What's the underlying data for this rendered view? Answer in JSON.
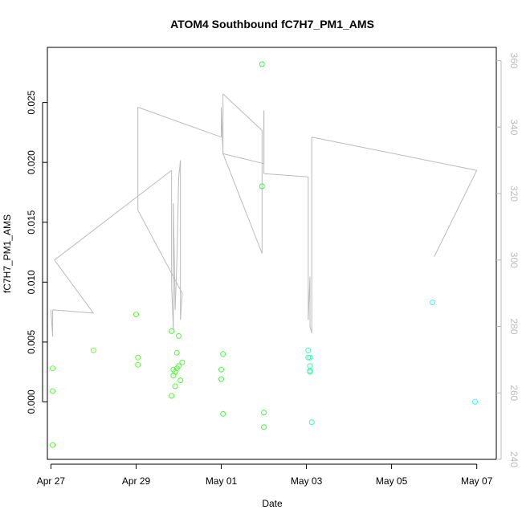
{
  "chart_data": {
    "type": "scatter",
    "title": "ATOM4 Southbound fC7H7_PM1_AMS",
    "xlabel": "Date",
    "ylabel": "fC7H7_PM1_AMS",
    "x_axis": {
      "type": "date",
      "range": [
        "2017-04-26T22:00",
        "2017-05-07T11:00"
      ],
      "ticks": [
        {
          "date": "2017-04-27",
          "label": "Apr 27"
        },
        {
          "date": "2017-04-29",
          "label": "Apr 29"
        },
        {
          "date": "2017-05-01",
          "label": "May 01"
        },
        {
          "date": "2017-05-03",
          "label": "May 03"
        },
        {
          "date": "2017-05-05",
          "label": "May 05"
        },
        {
          "date": "2017-05-07",
          "label": "May 07"
        }
      ]
    },
    "y_left": {
      "range": [
        -0.0048,
        0.0296
      ],
      "ticks": [
        {
          "value": 0.0,
          "label": "0.000"
        },
        {
          "value": 0.005,
          "label": "0.005"
        },
        {
          "value": 0.01,
          "label": "0.010"
        },
        {
          "value": 0.015,
          "label": "0.015"
        },
        {
          "value": 0.02,
          "label": "0.020"
        },
        {
          "value": 0.025,
          "label": "0.025"
        }
      ]
    },
    "y_right": {
      "range": [
        240,
        364
      ],
      "color": "#bbbbbb",
      "ticks": [
        {
          "value": 240,
          "label": "240"
        },
        {
          "value": 260,
          "label": "260"
        },
        {
          "value": 280,
          "label": "280"
        },
        {
          "value": 300,
          "label": "300"
        },
        {
          "value": 320,
          "label": "320"
        },
        {
          "value": 340,
          "label": "340"
        },
        {
          "value": 360,
          "label": "360"
        }
      ]
    },
    "grid": false,
    "series": [
      {
        "kind": "points",
        "axis": "left",
        "marker": "open-circle",
        "points": [
          {
            "x": "2017-04-27T01:00",
            "y": -0.0036,
            "color": "#55ff33"
          },
          {
            "x": "2017-04-27T01:00",
            "y": 0.0009,
            "color": "#55ff33"
          },
          {
            "x": "2017-04-27T01:00",
            "y": 0.0028,
            "color": "#55ff33"
          },
          {
            "x": "2017-04-28T00:00",
            "y": 0.0043,
            "color": "#66ff33"
          },
          {
            "x": "2017-04-29T00:00",
            "y": 0.0073,
            "color": "#5cff33"
          },
          {
            "x": "2017-04-29T01:00",
            "y": 0.0037,
            "color": "#5cff33"
          },
          {
            "x": "2017-04-29T01:00",
            "y": 0.0031,
            "color": "#5cff33"
          },
          {
            "x": "2017-04-29T20:00",
            "y": 0.0059,
            "color": "#4dff33"
          },
          {
            "x": "2017-04-29T20:00",
            "y": 0.0005,
            "color": "#4dff33"
          },
          {
            "x": "2017-04-29T21:00",
            "y": 0.0022,
            "color": "#4dff33"
          },
          {
            "x": "2017-04-29T21:00",
            "y": 0.0027,
            "color": "#4dff33"
          },
          {
            "x": "2017-04-29T22:00",
            "y": 0.0025,
            "color": "#4dff33"
          },
          {
            "x": "2017-04-29T22:00",
            "y": 0.0013,
            "color": "#4dff33"
          },
          {
            "x": "2017-04-29T23:00",
            "y": 0.0028,
            "color": "#4dff33"
          },
          {
            "x": "2017-04-29T23:00",
            "y": 0.0041,
            "color": "#4dff33"
          },
          {
            "x": "2017-04-30T00:00",
            "y": 0.003,
            "color": "#4dff33"
          },
          {
            "x": "2017-04-30T00:00",
            "y": 0.0055,
            "color": "#4dff33"
          },
          {
            "x": "2017-04-30T01:00",
            "y": 0.0018,
            "color": "#4dff33"
          },
          {
            "x": "2017-04-30T02:00",
            "y": 0.0033,
            "color": "#4dff33"
          },
          {
            "x": "2017-05-01T00:00",
            "y": 0.0027,
            "color": "#40ff40"
          },
          {
            "x": "2017-05-01T00:00",
            "y": 0.0019,
            "color": "#40ff40"
          },
          {
            "x": "2017-05-01T01:00",
            "y": -0.001,
            "color": "#40ff40"
          },
          {
            "x": "2017-05-01T01:00",
            "y": 0.004,
            "color": "#40ff40"
          },
          {
            "x": "2017-05-01T23:00",
            "y": 0.0282,
            "color": "#33ff44"
          },
          {
            "x": "2017-05-01T23:00",
            "y": 0.018,
            "color": "#33ff44"
          },
          {
            "x": "2017-05-02T00:00",
            "y": -0.0009,
            "color": "#33ff44"
          },
          {
            "x": "2017-05-02T00:00",
            "y": -0.0021,
            "color": "#33ff44"
          },
          {
            "x": "2017-05-03T01:00",
            "y": 0.0043,
            "color": "#33ffaa"
          },
          {
            "x": "2017-05-03T01:00",
            "y": 0.0037,
            "color": "#33ffaa"
          },
          {
            "x": "2017-05-03T02:00",
            "y": 0.0037,
            "color": "#33ffaa"
          },
          {
            "x": "2017-05-03T02:00",
            "y": 0.003,
            "color": "#33ffaa"
          },
          {
            "x": "2017-05-03T02:00",
            "y": 0.0026,
            "color": "#33ffaa"
          },
          {
            "x": "2017-05-03T02:00",
            "y": 0.0025,
            "color": "#33ffaa"
          },
          {
            "x": "2017-05-03T03:00",
            "y": -0.0017,
            "color": "#33ffaa"
          },
          {
            "x": "2017-05-05T23:00",
            "y": 0.0083,
            "color": "#33ffee"
          },
          {
            "x": "2017-05-06T23:00",
            "y": 0.0,
            "color": "#33ffff"
          }
        ]
      },
      {
        "kind": "line",
        "axis": "right",
        "color": "#bbbbbb",
        "points": [
          {
            "x": "2017-04-27T00:00",
            "y": 285
          },
          {
            "x": "2017-04-27T01:00",
            "y": 277
          },
          {
            "x": "2017-04-27T01:00",
            "y": 285
          },
          {
            "x": "2017-04-28T00:00",
            "y": 284
          },
          {
            "x": "2017-04-27T02:00",
            "y": 300
          },
          {
            "x": "2017-04-29T20:00",
            "y": 327
          },
          {
            "x": "2017-04-29T20:00",
            "y": 292
          },
          {
            "x": "2017-04-29T21:00",
            "y": 279
          },
          {
            "x": "2017-04-29T21:00",
            "y": 317
          },
          {
            "x": "2017-04-29T22:00",
            "y": 285
          },
          {
            "x": "2017-04-29T23:00",
            "y": 300
          },
          {
            "x": "2017-04-30T00:00",
            "y": 325
          },
          {
            "x": "2017-04-30T01:00",
            "y": 330
          },
          {
            "x": "2017-04-30T01:00",
            "y": 282
          },
          {
            "x": "2017-04-30T02:00",
            "y": 290
          },
          {
            "x": "2017-04-29T01:00",
            "y": 315
          },
          {
            "x": "2017-04-29T01:00",
            "y": 346
          },
          {
            "x": "2017-05-01T00:00",
            "y": 337
          },
          {
            "x": "2017-05-01T00:00",
            "y": 346
          },
          {
            "x": "2017-05-01T01:00",
            "y": 332
          },
          {
            "x": "2017-05-01T01:00",
            "y": 350
          },
          {
            "x": "2017-05-01T23:00",
            "y": 339
          },
          {
            "x": "2017-05-01T23:00",
            "y": 302
          },
          {
            "x": "2017-05-01T01:00",
            "y": 332
          },
          {
            "x": "2017-05-02T00:00",
            "y": 329
          },
          {
            "x": "2017-05-02T00:00",
            "y": 345
          },
          {
            "x": "2017-05-02T00:00",
            "y": 326
          },
          {
            "x": "2017-05-03T01:00",
            "y": 325
          },
          {
            "x": "2017-05-03T01:00",
            "y": 282
          },
          {
            "x": "2017-05-03T02:00",
            "y": 295
          },
          {
            "x": "2017-05-03T02:00",
            "y": 280
          },
          {
            "x": "2017-05-03T03:00",
            "y": 278
          },
          {
            "x": "2017-05-03T03:00",
            "y": 337
          },
          {
            "x": "2017-05-07T00:00",
            "y": 327
          },
          {
            "x": "2017-05-06T00:00",
            "y": 301
          }
        ]
      }
    ]
  }
}
